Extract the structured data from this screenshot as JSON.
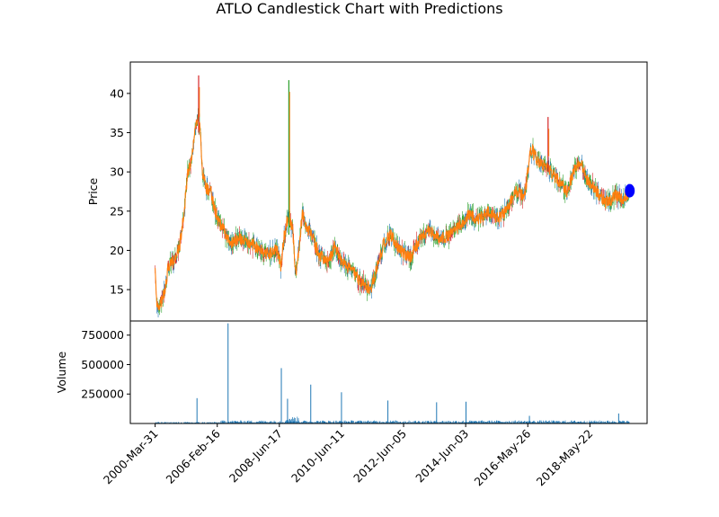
{
  "chart_data": [
    {
      "type": "candlestick",
      "title": "ATLO Candlestick Chart with Predictions",
      "ylabel": "Price",
      "ylim": [
        11,
        44
      ],
      "yticks": [
        15,
        20,
        25,
        30,
        35,
        40
      ],
      "colors": {
        "up": "#2ca02c",
        "down": "#d62728",
        "body": "#ff7f0e",
        "wick": "#1f77b4",
        "prediction": "#0000ff"
      },
      "close_series": [
        {
          "t": 0,
          "price": 17.5
        },
        {
          "t": 0.4,
          "price": 13.5
        },
        {
          "t": 1.0,
          "price": 12.6
        },
        {
          "t": 1.8,
          "price": 13.3
        },
        {
          "t": 3.0,
          "price": 15.0
        },
        {
          "t": 4.0,
          "price": 17.8
        },
        {
          "t": 5.5,
          "price": 18.6
        },
        {
          "t": 7.5,
          "price": 20.5
        },
        {
          "t": 9.0,
          "price": 25.5
        },
        {
          "t": 10.0,
          "price": 30.0
        },
        {
          "t": 11.0,
          "price": 31.0
        },
        {
          "t": 12.0,
          "price": 34.5
        },
        {
          "t": 13.0,
          "price": 37.0
        },
        {
          "t": 13.8,
          "price": 35.0
        },
        {
          "t": 14.5,
          "price": 30.0
        },
        {
          "t": 15.5,
          "price": 28.0
        },
        {
          "t": 17.0,
          "price": 27.5
        },
        {
          "t": 19.0,
          "price": 24.0
        },
        {
          "t": 21.0,
          "price": 22.5
        },
        {
          "t": 23.0,
          "price": 21.0
        },
        {
          "t": 26.0,
          "price": 21.5
        },
        {
          "t": 29.0,
          "price": 21.0
        },
        {
          "t": 32.0,
          "price": 20.0
        },
        {
          "t": 35.0,
          "price": 19.5
        },
        {
          "t": 37.0,
          "price": 20.5
        },
        {
          "t": 38.5,
          "price": 18.0
        },
        {
          "t": 39.5,
          "price": 22.0
        },
        {
          "t": 40.5,
          "price": 24.0
        },
        {
          "t": 42.0,
          "price": 23.0
        },
        {
          "t": 43.0,
          "price": 17.0
        },
        {
          "t": 44.0,
          "price": 20.0
        },
        {
          "t": 45.0,
          "price": 25.0
        },
        {
          "t": 46.0,
          "price": 23.0
        },
        {
          "t": 48.0,
          "price": 22.0
        },
        {
          "t": 50.0,
          "price": 19.5
        },
        {
          "t": 53.0,
          "price": 18.5
        },
        {
          "t": 55.0,
          "price": 20.5
        },
        {
          "t": 57.0,
          "price": 18.5
        },
        {
          "t": 60.0,
          "price": 17.5
        },
        {
          "t": 63.0,
          "price": 16.0
        },
        {
          "t": 66.0,
          "price": 15.0
        },
        {
          "t": 68.0,
          "price": 18.0
        },
        {
          "t": 70.0,
          "price": 21.0
        },
        {
          "t": 72.0,
          "price": 22.0
        },
        {
          "t": 75.0,
          "price": 20.0
        },
        {
          "t": 78.0,
          "price": 19.0
        },
        {
          "t": 81.0,
          "price": 21.5
        },
        {
          "t": 84.0,
          "price": 22.5
        },
        {
          "t": 87.0,
          "price": 21.5
        },
        {
          "t": 90.0,
          "price": 22.0
        },
        {
          "t": 93.0,
          "price": 23.0
        },
        {
          "t": 96.0,
          "price": 24.5
        },
        {
          "t": 99.0,
          "price": 24.0
        },
        {
          "t": 102.0,
          "price": 25.0
        },
        {
          "t": 105.0,
          "price": 24.0
        },
        {
          "t": 108.0,
          "price": 25.5
        },
        {
          "t": 110.0,
          "price": 27.5
        },
        {
          "t": 113.0,
          "price": 27.0
        },
        {
          "t": 115.0,
          "price": 33.0
        },
        {
          "t": 117.0,
          "price": 31.5
        },
        {
          "t": 120.0,
          "price": 30.5
        },
        {
          "t": 123.0,
          "price": 29.0
        },
        {
          "t": 126.0,
          "price": 27.5
        },
        {
          "t": 128.0,
          "price": 30.0
        },
        {
          "t": 130.0,
          "price": 31.5
        },
        {
          "t": 132.0,
          "price": 29.0
        },
        {
          "t": 135.0,
          "price": 27.5
        },
        {
          "t": 138.0,
          "price": 26.0
        },
        {
          "t": 141.0,
          "price": 27.0
        },
        {
          "t": 143.0,
          "price": 26.5
        },
        {
          "t": 145.0,
          "price": 27.5
        }
      ],
      "spikes": [
        {
          "t": 13.3,
          "low": 35.0,
          "high": 42.3
        },
        {
          "t": 40.9,
          "low": 22.0,
          "high": 41.7
        },
        {
          "t": 120.2,
          "low": 30.0,
          "high": 37.0
        }
      ],
      "predictions": [
        {
          "t": 145.2,
          "price": 27.6
        }
      ]
    },
    {
      "type": "bar",
      "ylabel": "Volume",
      "ylim": [
        0,
        870000
      ],
      "yticks": [
        250000,
        500000,
        750000
      ],
      "ytick_labels": [
        "250000",
        "500000",
        "750000"
      ],
      "xticks": [
        {
          "t": 0,
          "label": "2000-Mar-31"
        },
        {
          "t": 19,
          "label": "2006-Feb-16"
        },
        {
          "t": 38,
          "label": "2008-Jun-17"
        },
        {
          "t": 57,
          "label": "2010-Jun-11"
        },
        {
          "t": 76,
          "label": "2012-Jun-05"
        },
        {
          "t": 95,
          "label": "2014-Jun-03"
        },
        {
          "t": 114,
          "label": "2016-May-26"
        },
        {
          "t": 133,
          "label": "2018-May-22"
        }
      ],
      "spikes": [
        {
          "t": 12.8,
          "value": 215000
        },
        {
          "t": 22.3,
          "value": 850000
        },
        {
          "t": 38.6,
          "value": 470000
        },
        {
          "t": 40.5,
          "value": 210000
        },
        {
          "t": 47.6,
          "value": 330000
        },
        {
          "t": 57.0,
          "value": 265000
        },
        {
          "t": 71.2,
          "value": 195000
        },
        {
          "t": 86.1,
          "value": 180000
        },
        {
          "t": 95.1,
          "value": 185000
        },
        {
          "t": 114.5,
          "value": 65000
        },
        {
          "t": 141.8,
          "value": 85000
        }
      ],
      "base_level": 25000
    }
  ]
}
